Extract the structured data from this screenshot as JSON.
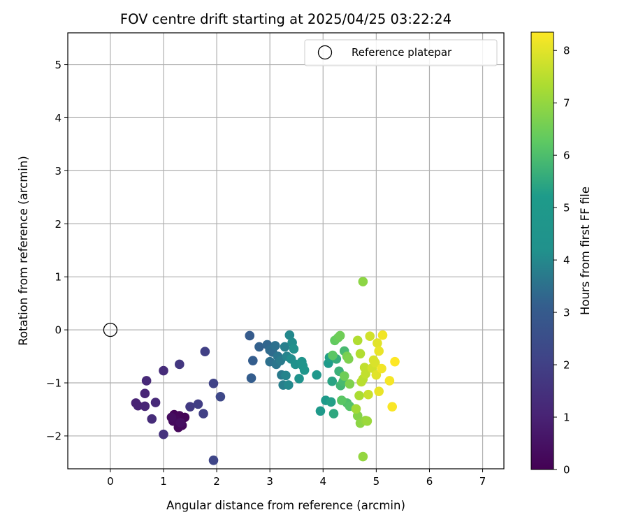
{
  "chart_data": {
    "type": "scatter",
    "title": "FOV centre drift starting at 2025/04/25 03:22:24",
    "xlabel": "Angular distance from reference (arcmin)",
    "ylabel": "Rotation from reference (arcmin)",
    "xlim": [
      -0.8,
      7.4
    ],
    "ylim": [
      -2.62,
      5.6
    ],
    "xticks": [
      0,
      1,
      2,
      3,
      4,
      5,
      6,
      7
    ],
    "yticks": [
      -2,
      -1,
      0,
      1,
      2,
      3,
      4,
      5
    ],
    "grid": true,
    "legend": {
      "placement": "top-right",
      "entries": [
        "Reference platepar"
      ]
    },
    "reference_point": {
      "label": "Reference platepar",
      "x": 0,
      "y": 0
    },
    "colorbar": {
      "label": "Hours from first FF file",
      "min": 0,
      "max": 8.35,
      "ticks": [
        0,
        1,
        2,
        3,
        4,
        5,
        6,
        7,
        8
      ],
      "colormap": "viridis"
    },
    "points": [
      [
        1.2,
        -1.6,
        0.1
      ],
      [
        1.3,
        -1.62,
        0.15
      ],
      [
        1.25,
        -1.7,
        0.2
      ],
      [
        1.35,
        -1.8,
        0.25
      ],
      [
        1.18,
        -1.72,
        0.3
      ],
      [
        1.28,
        -1.84,
        0.2
      ],
      [
        1.4,
        -1.65,
        0.1
      ],
      [
        1.15,
        -1.65,
        0.35
      ],
      [
        1.32,
        -1.75,
        0.4
      ],
      [
        0.48,
        -1.38,
        1.0
      ],
      [
        0.52,
        -1.43,
        1.0
      ],
      [
        0.65,
        -1.44,
        1.1
      ],
      [
        0.65,
        -1.2,
        1.1
      ],
      [
        0.68,
        -0.96,
        1.2
      ],
      [
        0.85,
        -1.37,
        1.2
      ],
      [
        0.78,
        -1.68,
        1.3
      ],
      [
        1.0,
        -0.77,
        1.3
      ],
      [
        1.0,
        -1.97,
        1.5
      ],
      [
        1.3,
        -0.65,
        1.7
      ],
      [
        1.5,
        -1.45,
        1.8
      ],
      [
        1.65,
        -1.4,
        1.9
      ],
      [
        1.75,
        -1.58,
        2.0
      ],
      [
        1.78,
        -0.41,
        2.0
      ],
      [
        1.94,
        -1.01,
        2.1
      ],
      [
        1.94,
        -2.46,
        2.2
      ],
      [
        2.07,
        -1.26,
        2.3
      ],
      [
        2.62,
        -0.11,
        3.0
      ],
      [
        2.65,
        -0.91,
        3.1
      ],
      [
        2.68,
        -0.58,
        3.1
      ],
      [
        2.8,
        -0.32,
        3.2
      ],
      [
        2.95,
        -0.28,
        3.3
      ],
      [
        3.0,
        -0.38,
        3.4
      ],
      [
        3.05,
        -0.42,
        3.4
      ],
      [
        3.0,
        -0.6,
        3.5
      ],
      [
        3.1,
        -0.3,
        3.5
      ],
      [
        3.12,
        -0.65,
        3.6
      ],
      [
        3.15,
        -0.5,
        3.6
      ],
      [
        3.2,
        -0.58,
        3.7
      ],
      [
        3.22,
        -0.85,
        3.7
      ],
      [
        3.25,
        -1.04,
        3.8
      ],
      [
        3.28,
        -0.32,
        3.8
      ],
      [
        3.3,
        -0.86,
        3.9
      ],
      [
        3.32,
        -0.5,
        3.9
      ],
      [
        3.35,
        -1.04,
        4.0
      ],
      [
        3.37,
        -0.1,
        4.0
      ],
      [
        3.4,
        -0.55,
        4.1
      ],
      [
        3.42,
        -0.24,
        4.1
      ],
      [
        3.45,
        -0.36,
        4.2
      ],
      [
        3.48,
        -0.65,
        4.2
      ],
      [
        3.55,
        -0.92,
        4.4
      ],
      [
        3.6,
        -0.6,
        4.5
      ],
      [
        3.62,
        -0.68,
        4.6
      ],
      [
        3.65,
        -0.76,
        4.7
      ],
      [
        3.88,
        -0.85,
        4.9
      ],
      [
        3.95,
        -1.53,
        5.0
      ],
      [
        4.05,
        -1.33,
        5.1
      ],
      [
        4.1,
        -0.63,
        5.2
      ],
      [
        4.12,
        -0.52,
        5.3
      ],
      [
        4.15,
        -1.36,
        5.3
      ],
      [
        4.17,
        -0.97,
        5.4
      ],
      [
        4.2,
        -1.58,
        5.5
      ],
      [
        4.25,
        -0.55,
        5.6
      ],
      [
        4.3,
        -0.78,
        5.7
      ],
      [
        4.33,
        -1.05,
        5.8
      ],
      [
        4.38,
        -0.97,
        5.9
      ],
      [
        4.4,
        -0.4,
        5.9
      ],
      [
        4.45,
        -1.38,
        6.0
      ],
      [
        4.5,
        -1.44,
        6.1
      ],
      [
        4.35,
        -1.33,
        6.2
      ],
      [
        4.18,
        -0.48,
        6.2
      ],
      [
        4.22,
        -0.2,
        6.3
      ],
      [
        4.28,
        -0.15,
        6.4
      ],
      [
        4.32,
        -0.11,
        6.5
      ],
      [
        4.4,
        -0.87,
        6.5
      ],
      [
        4.45,
        -0.5,
        6.6
      ],
      [
        4.48,
        -0.55,
        6.7
      ],
      [
        4.5,
        -1.02,
        6.7
      ],
      [
        4.65,
        -1.62,
        6.8
      ],
      [
        4.7,
        -1.76,
        6.9
      ],
      [
        4.75,
        0.91,
        6.9
      ],
      [
        4.75,
        -2.39,
        7.0
      ],
      [
        4.8,
        -1.71,
        7.0
      ],
      [
        4.83,
        -1.72,
        7.1
      ],
      [
        4.62,
        -1.49,
        7.2
      ],
      [
        4.68,
        -1.24,
        7.3
      ],
      [
        4.65,
        -0.2,
        7.4
      ],
      [
        4.7,
        -0.45,
        7.4
      ],
      [
        4.72,
        -0.98,
        7.5
      ],
      [
        4.75,
        -0.93,
        7.5
      ],
      [
        4.78,
        -0.71,
        7.6
      ],
      [
        4.8,
        -0.83,
        7.6
      ],
      [
        4.85,
        -1.22,
        7.7
      ],
      [
        4.88,
        -0.12,
        7.8
      ],
      [
        4.92,
        -0.72,
        7.8
      ],
      [
        4.95,
        -0.57,
        7.9
      ],
      [
        4.98,
        -0.62,
        7.9
      ],
      [
        5.0,
        -0.85,
        8.0
      ],
      [
        5.02,
        -0.25,
        8.0
      ],
      [
        5.05,
        -0.4,
        8.1
      ],
      [
        5.05,
        -1.16,
        8.1
      ],
      [
        5.1,
        -0.73,
        8.2
      ],
      [
        5.12,
        -0.1,
        8.2
      ],
      [
        5.25,
        -0.96,
        8.25
      ],
      [
        5.3,
        -1.45,
        8.3
      ],
      [
        5.35,
        -0.6,
        8.35
      ]
    ]
  }
}
